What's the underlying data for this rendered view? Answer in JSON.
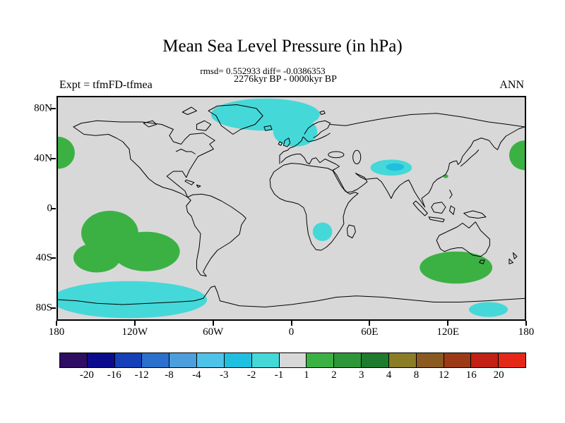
{
  "header": {
    "title": "Mean Sea Level Pressure (in hPa)",
    "stats_line": "rmsd= 0.552933 diff= -0.0386353",
    "period_line": "2276kyr BP - 0000kyr BP",
    "experiment_label": "Expt = tfmFD-tfmea",
    "season_label": "ANN"
  },
  "chart_data": {
    "type": "heatmap",
    "title": "Mean Sea Level Pressure (in hPa)",
    "subtitle_stats": {
      "rmsd": 0.552933,
      "diff": -0.0386353
    },
    "period": "2276kyr BP - 0000kyr BP",
    "experiment": "tfmFD-tfmea",
    "season": "ANN",
    "projection": "equirectangular",
    "lon_range": [
      -180,
      180
    ],
    "lat_range": [
      -90,
      90
    ],
    "x_ticks": [
      "180",
      "120W",
      "60W",
      "0",
      "60E",
      "120E",
      "180"
    ],
    "x_tick_lons": [
      -180,
      -120,
      -60,
      0,
      60,
      120,
      180
    ],
    "y_ticks": [
      "80N",
      "40N",
      "0",
      "40S",
      "80S"
    ],
    "y_tick_lats": [
      80,
      40,
      0,
      -40,
      -80
    ],
    "grid": false,
    "map_colors": {
      "background": "#d8d8d8",
      "coastline": "#000000",
      "neg_1_to_2": "#45d8d8",
      "neg_2_to_3": "#1fbfe0",
      "pos_1_to_2": "#3bb143"
    },
    "colorbar": {
      "levels": [
        -20,
        -16,
        -12,
        -8,
        -4,
        -3,
        -2,
        -1,
        1,
        2,
        3,
        4,
        8,
        12,
        16,
        20
      ],
      "colors": [
        "#2e0d62",
        "#0b0b8d",
        "#1540b8",
        "#2a70cc",
        "#4c9fdc",
        "#4fc2e8",
        "#1fbfe0",
        "#45d8d8",
        "#d8d8d8",
        "#3bb143",
        "#2d9638",
        "#1e7a2c",
        "#8a7d26",
        "#8a5a20",
        "#9c3a15",
        "#c22113",
        "#e52718"
      ]
    },
    "anomaly_regions": [
      {
        "name": "north-atlantic-negative-main",
        "level": "-2 to -1",
        "shape": "ellipse",
        "lon": -20,
        "lat": 76,
        "rlon": 42,
        "rlat": 13,
        "fill": "#45d8d8"
      },
      {
        "name": "north-atlantic-negative-south-lobe",
        "level": "-2 to -1",
        "shape": "ellipse",
        "lon": 3,
        "lat": 62,
        "rlon": 17,
        "rlat": 12,
        "fill": "#45d8d8"
      },
      {
        "name": "tibet-negative",
        "level": "-2 to -1",
        "shape": "ellipse",
        "lon": 77,
        "lat": 33,
        "rlon": 16,
        "rlat": 6.5,
        "fill": "#45d8d8"
      },
      {
        "name": "tibet-negative-core",
        "level": "-3 to -2",
        "shape": "ellipse",
        "lon": 80,
        "lat": 33.5,
        "rlon": 7,
        "rlat": 3,
        "fill": "#1fbfe0"
      },
      {
        "name": "southern-africa-negative",
        "level": "-2 to -1",
        "shape": "ellipse",
        "lon": 24,
        "lat": -19,
        "rlon": 7.5,
        "rlat": 7.5,
        "fill": "#45d8d8"
      },
      {
        "name": "northwest-pacific-positive-westwrap",
        "level": "1 to 2",
        "shape": "ellipse",
        "lon": -180,
        "lat": 45,
        "rlon": 13,
        "rlat": 13,
        "fill": "#3bb143"
      },
      {
        "name": "northwest-pacific-positive-eastwrap",
        "level": "1 to 2",
        "shape": "ellipse",
        "lon": 180,
        "lat": 43,
        "rlon": 12,
        "rlat": 12,
        "fill": "#3bb143"
      },
      {
        "name": "east-china-positive-speck",
        "level": "1 to 2",
        "shape": "ellipse",
        "lon": 119,
        "lat": 26,
        "rlon": 2,
        "rlat": 1.5,
        "fill": "#3bb143"
      },
      {
        "name": "south-pacific-positive-a",
        "level": "1 to 2",
        "shape": "ellipse",
        "lon": -140,
        "lat": -20,
        "rlon": 22,
        "rlat": 18,
        "fill": "#3bb143"
      },
      {
        "name": "south-pacific-positive-b",
        "level": "1 to 2",
        "shape": "ellipse",
        "lon": -112,
        "lat": -35,
        "rlon": 26,
        "rlat": 16,
        "fill": "#3bb143"
      },
      {
        "name": "south-pacific-positive-c",
        "level": "1 to 2",
        "shape": "ellipse",
        "lon": -150,
        "lat": -40,
        "rlon": 18,
        "rlat": 12,
        "fill": "#3bb143"
      },
      {
        "name": "south-indian-positive",
        "level": "1 to 2",
        "shape": "ellipse",
        "lon": 127,
        "lat": -48,
        "rlon": 28,
        "rlat": 13,
        "fill": "#3bb143"
      },
      {
        "name": "southern-ocean-negative-band",
        "level": "-2 to -1",
        "shape": "ellipse",
        "lon": -125,
        "lat": -74,
        "rlon": 60,
        "rlat": 15,
        "fill": "#45d8d8"
      },
      {
        "name": "ross-sea-negative",
        "level": "-2 to -1",
        "shape": "ellipse",
        "lon": 152,
        "lat": -82,
        "rlon": 15,
        "rlat": 6,
        "fill": "#45d8d8"
      }
    ]
  }
}
